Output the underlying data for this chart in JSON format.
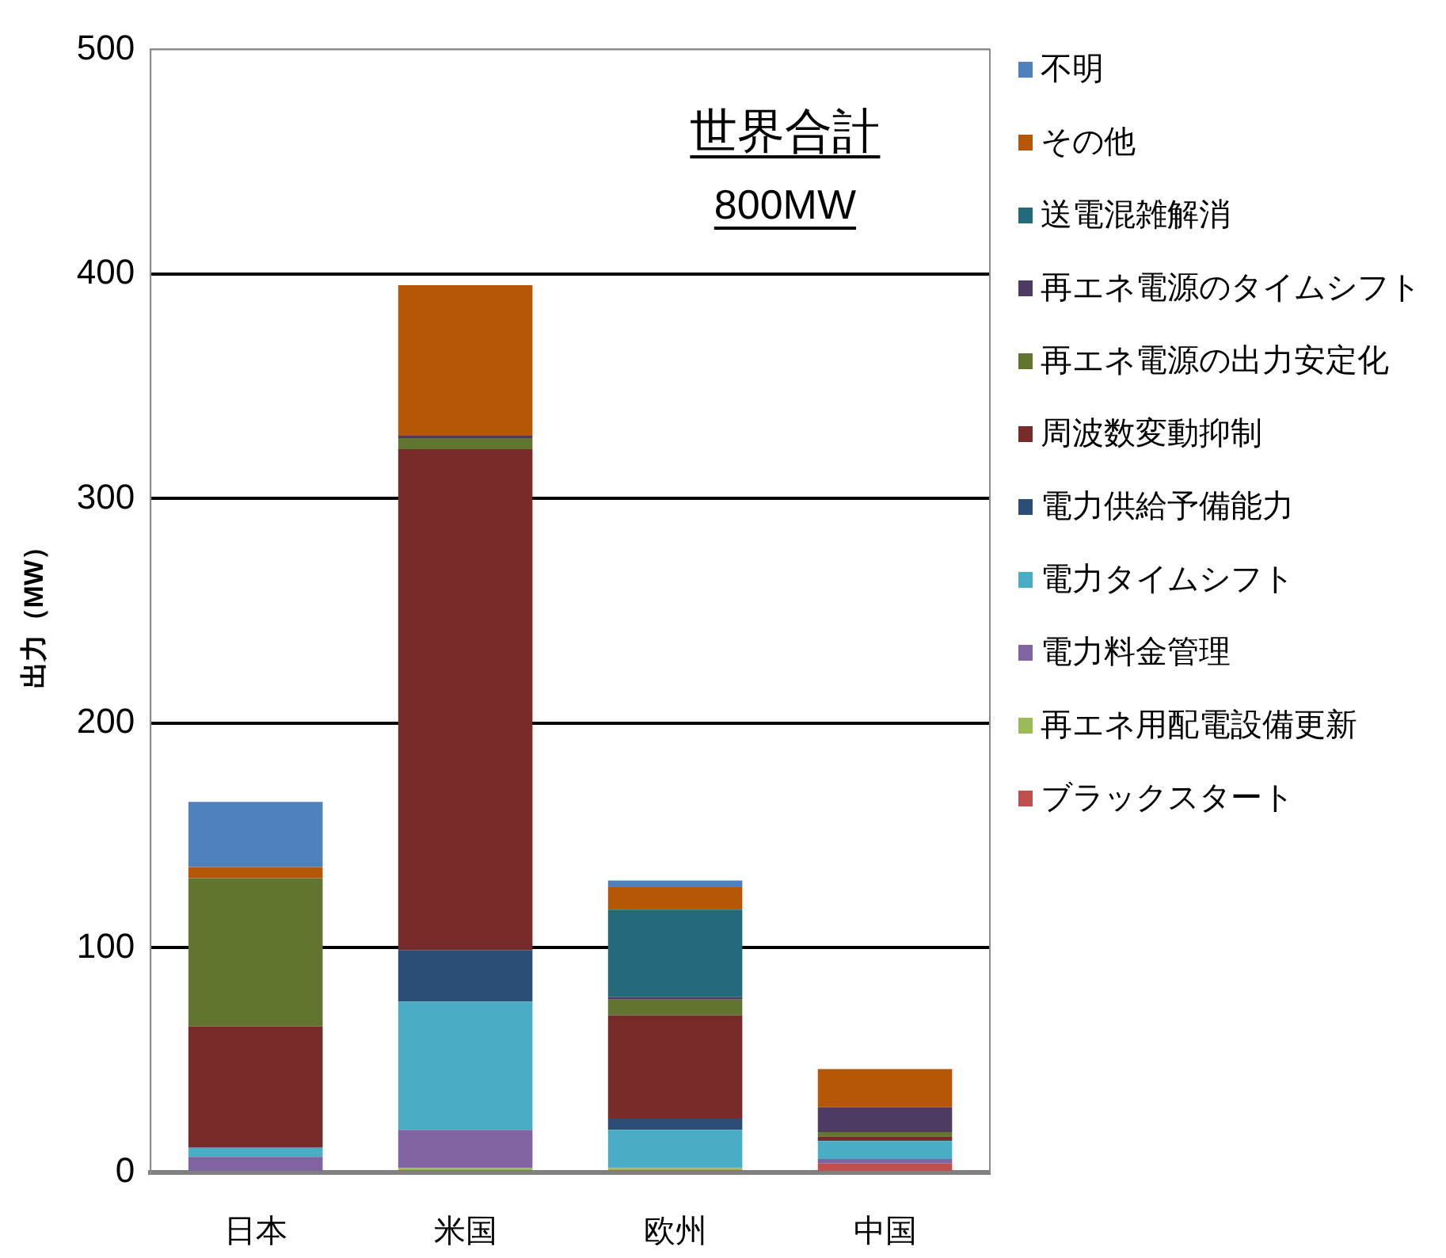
{
  "chart_data": {
    "type": "bar",
    "stacked": true,
    "categories": [
      "日本",
      "米国",
      "欧州",
      "中国"
    ],
    "ylabel": "出力（MW）",
    "ylim": [
      0,
      500
    ],
    "yticks": [
      0,
      100,
      200,
      300,
      400,
      500
    ],
    "grid": "y",
    "legend": "right",
    "annotations": [
      "世界合計",
      "800MW"
    ],
    "series": [
      {
        "name": "ブラックスタート",
        "color": "#c0504d",
        "values": [
          null,
          1,
          1,
          4
        ]
      },
      {
        "name": "再エネ用配電設備更新",
        "color": "#9bbb59",
        "values": [
          null,
          1,
          1,
          null
        ]
      },
      {
        "name": "電力料金管理",
        "color": "#8064a2",
        "values": [
          7,
          17,
          null,
          2
        ]
      },
      {
        "name": "電力タイムシフト",
        "color": "#4bacc6",
        "values": [
          4,
          57,
          17,
          8
        ]
      },
      {
        "name": "電力供給予備能力",
        "color": "#2c4d75",
        "values": [
          null,
          23,
          5,
          null
        ]
      },
      {
        "name": "周波数変動抑制",
        "color": "#772c2a",
        "values": [
          54,
          223,
          46,
          2
        ]
      },
      {
        "name": "再エネ電源の出力安定化",
        "color": "#617530",
        "values": [
          66,
          5,
          7,
          2
        ]
      },
      {
        "name": "再エネ電源のタイムシフト",
        "color": "#4e3b62",
        "values": [
          null,
          1,
          1,
          11
        ]
      },
      {
        "name": "送電混雑解消",
        "color": "#256a7a",
        "values": [
          null,
          null,
          39,
          null
        ]
      },
      {
        "name": "その他",
        "color": "#b65708",
        "values": [
          5,
          67,
          10,
          17
        ]
      },
      {
        "name": "不明",
        "color": "#4f81bd",
        "values": [
          29,
          null,
          3,
          null
        ]
      }
    ]
  }
}
